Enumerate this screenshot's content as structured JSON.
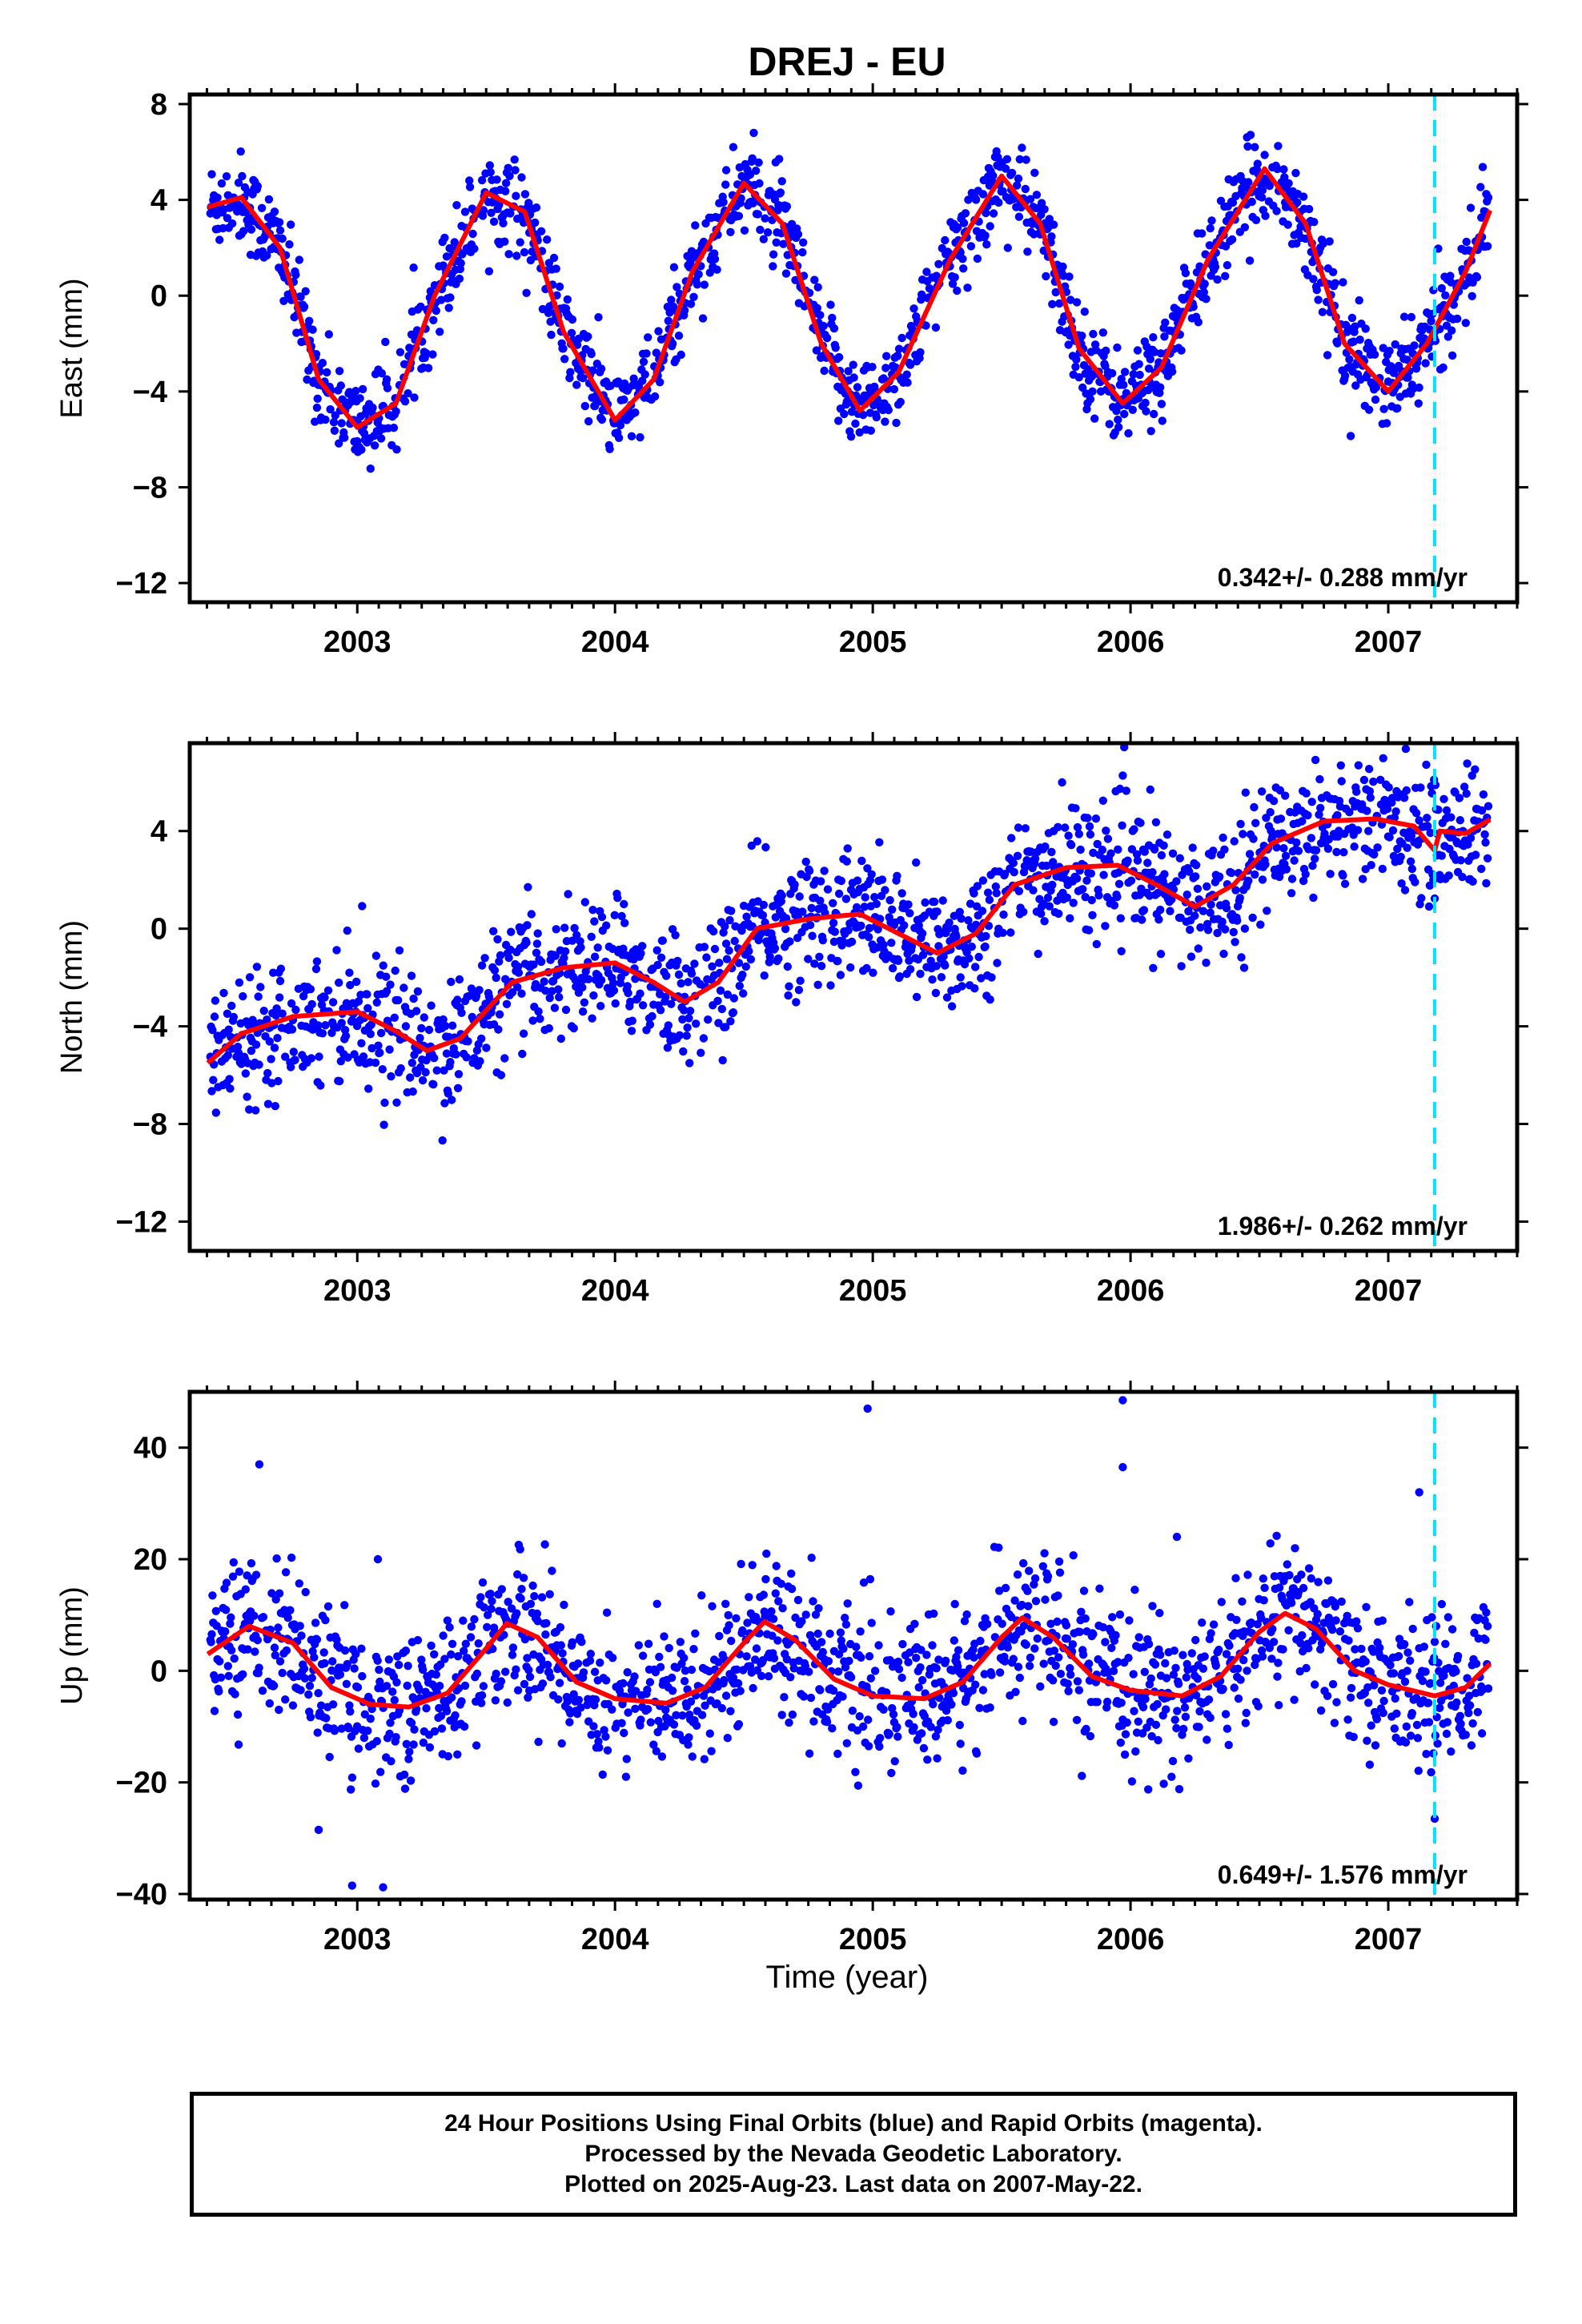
{
  "title": "DREJ - EU",
  "xlabel": "Time (year)",
  "footer": {
    "line1": "24 Hour Positions Using Final Orbits (blue) and Rapid Orbits (magenta).",
    "line2": "Processed by the Nevada Geodetic Laboratory.",
    "line3": "Plotted on 2025-Aug-23. Last data on 2007-May-22."
  },
  "colors": {
    "data": "#0000ff",
    "fit": "#ff0000",
    "marker": "#00e5ff",
    "frame": "#000000"
  },
  "chart_data": [
    {
      "type": "scatter",
      "component": "East",
      "ylabel": "East (mm)",
      "rate": "0.342+/- 0.288 mm/yr",
      "xlim": [
        2002.35,
        2007.5
      ],
      "ylim": [
        -12.8,
        8.4
      ],
      "yticks": [
        -12,
        -8,
        -4,
        0,
        4,
        8
      ],
      "xticks": [
        2003,
        2004,
        2005,
        2006,
        2007
      ],
      "event_line_x": 2007.18,
      "model": {
        "offset": -0.7,
        "trend": 0.342,
        "amp": [
          4.6,
          4.8,
          4.85,
          4.9,
          4.75,
          3.85
        ],
        "phase_peak": 2002.52,
        "noise": 0.95
      },
      "fit_points": [
        [
          2002.42,
          3.7
        ],
        [
          2002.55,
          4.1
        ],
        [
          2002.7,
          2.0
        ],
        [
          2002.85,
          -3.5
        ],
        [
          2003.0,
          -5.5
        ],
        [
          2003.15,
          -4.5
        ],
        [
          2003.3,
          0.0
        ],
        [
          2003.5,
          4.3
        ],
        [
          2003.65,
          3.5
        ],
        [
          2003.8,
          -1.5
        ],
        [
          2004.0,
          -5.2
        ],
        [
          2004.15,
          -3.5
        ],
        [
          2004.3,
          1.0
        ],
        [
          2004.5,
          4.7
        ],
        [
          2004.65,
          3.0
        ],
        [
          2004.8,
          -2.0
        ],
        [
          2004.95,
          -4.8
        ],
        [
          2005.1,
          -3.2
        ],
        [
          2005.3,
          1.5
        ],
        [
          2005.5,
          5.0
        ],
        [
          2005.65,
          3.0
        ],
        [
          2005.8,
          -2.2
        ],
        [
          2005.97,
          -4.5
        ],
        [
          2006.12,
          -3.0
        ],
        [
          2006.3,
          1.5
        ],
        [
          2006.52,
          5.3
        ],
        [
          2006.68,
          3.0
        ],
        [
          2006.83,
          -2.0
        ],
        [
          2007.0,
          -4.0
        ],
        [
          2007.15,
          -2.0
        ],
        [
          2007.3,
          1.0
        ],
        [
          2007.4,
          3.7
        ]
      ]
    },
    {
      "type": "scatter",
      "component": "North",
      "ylabel": "North (mm)",
      "rate": "1.986+/- 0.262 mm/yr",
      "xlim": [
        2002.35,
        2007.5
      ],
      "ylim": [
        -13.2,
        7.6
      ],
      "yticks": [
        -12,
        -8,
        -4,
        0,
        4
      ],
      "xticks": [
        2003,
        2004,
        2005,
        2006,
        2007
      ],
      "event_line_x": 2007.18,
      "model": {
        "offset": -4.0,
        "trend": 1.986,
        "amp": [
          1.2,
          1.2,
          1.2,
          1.2,
          1.2,
          1.2
        ],
        "phase_peak": 2002.9,
        "noise": 1.3
      },
      "fit_points": [
        [
          2002.42,
          -5.5
        ],
        [
          2002.55,
          -4.3
        ],
        [
          2002.75,
          -3.6
        ],
        [
          2003.0,
          -3.4
        ],
        [
          2003.15,
          -4.2
        ],
        [
          2003.27,
          -5.0
        ],
        [
          2003.4,
          -4.5
        ],
        [
          2003.6,
          -2.2
        ],
        [
          2003.8,
          -1.6
        ],
        [
          2004.0,
          -1.4
        ],
        [
          2004.15,
          -2.2
        ],
        [
          2004.27,
          -3.0
        ],
        [
          2004.4,
          -2.2
        ],
        [
          2004.55,
          0.0
        ],
        [
          2004.75,
          0.4
        ],
        [
          2004.95,
          0.6
        ],
        [
          2005.1,
          -0.2
        ],
        [
          2005.25,
          -1.0
        ],
        [
          2005.4,
          -0.2
        ],
        [
          2005.55,
          1.8
        ],
        [
          2005.75,
          2.5
        ],
        [
          2005.95,
          2.6
        ],
        [
          2006.1,
          1.8
        ],
        [
          2006.25,
          0.9
        ],
        [
          2006.4,
          1.8
        ],
        [
          2006.55,
          3.5
        ],
        [
          2006.75,
          4.4
        ],
        [
          2006.95,
          4.5
        ],
        [
          2007.1,
          4.2
        ],
        [
          2007.18,
          3.2
        ],
        [
          2007.2,
          4.0
        ],
        [
          2007.3,
          3.9
        ],
        [
          2007.4,
          4.5
        ]
      ]
    },
    {
      "type": "scatter",
      "component": "Up",
      "ylabel": "Up (mm)",
      "rate": "0.649+/- 1.576 mm/yr",
      "xlim": [
        2002.35,
        2007.5
      ],
      "ylim": [
        -41,
        50
      ],
      "yticks": [
        -40,
        -20,
        0,
        20,
        40
      ],
      "xticks": [
        2003,
        2004,
        2005,
        2006,
        2007
      ],
      "event_line_x": 2007.18,
      "model": {
        "offset": -0.5,
        "trend": 0.649,
        "amp": [
          7.5,
          7.5,
          7.5,
          7.5,
          7.5,
          7.5
        ],
        "phase_peak": 2002.58,
        "noise": 6.5
      },
      "outliers": [
        [
          2002.62,
          37.0
        ],
        [
          2002.85,
          -28.5
        ],
        [
          2002.98,
          -38.5
        ],
        [
          2003.1,
          -38.8
        ],
        [
          2003.08,
          20.0
        ],
        [
          2004.98,
          47.0
        ],
        [
          2005.97,
          48.5
        ],
        [
          2005.97,
          36.5
        ],
        [
          2006.18,
          24.0
        ],
        [
          2007.12,
          32.0
        ],
        [
          2007.18,
          -26.5
        ]
      ],
      "fit_points": [
        [
          2002.42,
          3.0
        ],
        [
          2002.58,
          8.0
        ],
        [
          2002.75,
          5.0
        ],
        [
          2002.9,
          -3.0
        ],
        [
          2003.05,
          -6.0
        ],
        [
          2003.2,
          -6.5
        ],
        [
          2003.35,
          -4.0
        ],
        [
          2003.5,
          4.0
        ],
        [
          2003.58,
          8.5
        ],
        [
          2003.7,
          6.0
        ],
        [
          2003.85,
          -2.0
        ],
        [
          2004.0,
          -5.0
        ],
        [
          2004.2,
          -5.8
        ],
        [
          2004.35,
          -3.0
        ],
        [
          2004.5,
          5.0
        ],
        [
          2004.58,
          8.8
        ],
        [
          2004.7,
          5.5
        ],
        [
          2004.85,
          -1.5
        ],
        [
          2005.0,
          -4.5
        ],
        [
          2005.2,
          -5.0
        ],
        [
          2005.35,
          -2.0
        ],
        [
          2005.5,
          6.0
        ],
        [
          2005.58,
          9.5
        ],
        [
          2005.7,
          6.0
        ],
        [
          2005.85,
          -1.0
        ],
        [
          2006.0,
          -3.5
        ],
        [
          2006.2,
          -4.5
        ],
        [
          2006.35,
          -1.0
        ],
        [
          2006.5,
          7.0
        ],
        [
          2006.6,
          10.3
        ],
        [
          2006.72,
          7.5
        ],
        [
          2006.87,
          0.0
        ],
        [
          2007.0,
          -2.5
        ],
        [
          2007.18,
          -4.5
        ],
        [
          2007.3,
          -3.0
        ],
        [
          2007.4,
          1.5
        ]
      ]
    }
  ]
}
